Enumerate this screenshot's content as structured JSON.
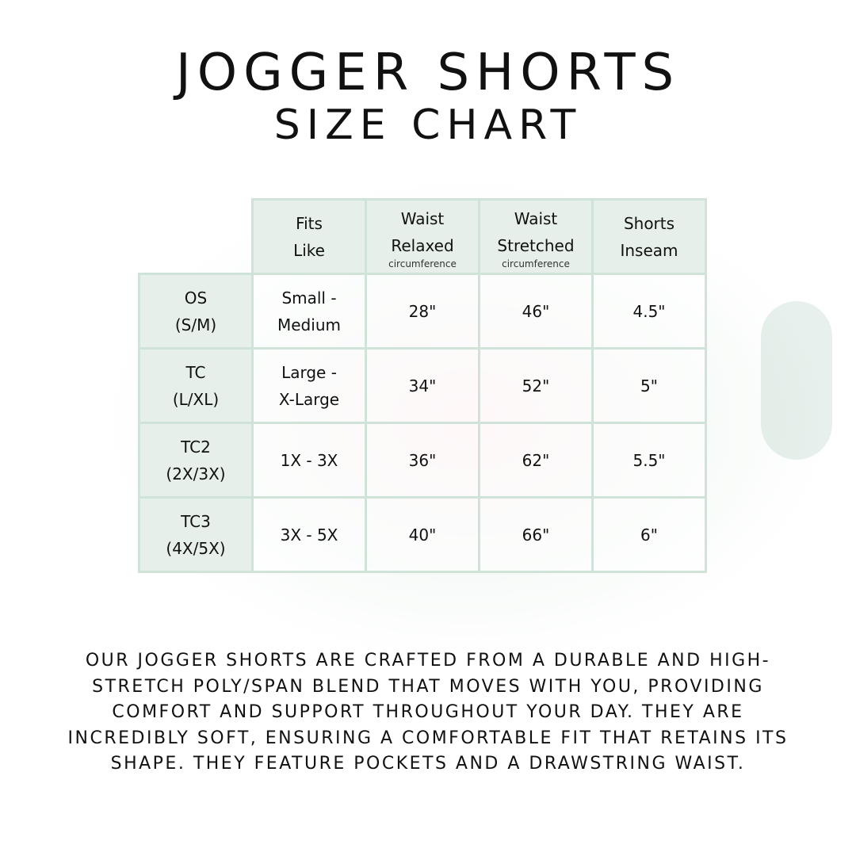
{
  "title_line1": "JOGGER SHORTS",
  "title_line2": "SIZE CHART",
  "table": {
    "headers": [
      {
        "lines": [
          "Fits",
          "Like"
        ],
        "sub": ""
      },
      {
        "lines": [
          "Waist",
          "Relaxed"
        ],
        "sub": "circumference"
      },
      {
        "lines": [
          "Waist",
          "Stretched"
        ],
        "sub": "circumference"
      },
      {
        "lines": [
          "Shorts",
          "Inseam"
        ],
        "sub": ""
      }
    ],
    "rows": [
      {
        "size": [
          "OS",
          "(S/M)"
        ],
        "fits": [
          "Small -",
          "Medium"
        ],
        "relaxed": "28\"",
        "stretched": "46\"",
        "inseam": "4.5\""
      },
      {
        "size": [
          "TC",
          "(L/XL)"
        ],
        "fits": [
          "Large -",
          "X-Large"
        ],
        "relaxed": "34\"",
        "stretched": "52\"",
        "inseam": "5\""
      },
      {
        "size": [
          "TC2",
          "(2X/3X)"
        ],
        "fits": [
          "1X - 3X",
          ""
        ],
        "relaxed": "36\"",
        "stretched": "62\"",
        "inseam": "5.5\""
      },
      {
        "size": [
          "TC3",
          "(4X/5X)"
        ],
        "fits": [
          "3X - 5X",
          ""
        ],
        "relaxed": "40\"",
        "stretched": "66\"",
        "inseam": "6\""
      }
    ]
  },
  "description": "Our jogger shorts are crafted from a durable and high-stretch poly/span blend that moves with you, providing comfort and support throughout your day. They are incredibly soft, ensuring a comfortable fit that retains its shape. They feature pockets and a drawstring waist.",
  "colors": {
    "header_bg": "#e6efe9",
    "border": "#cfe3d8",
    "text": "#111111"
  }
}
